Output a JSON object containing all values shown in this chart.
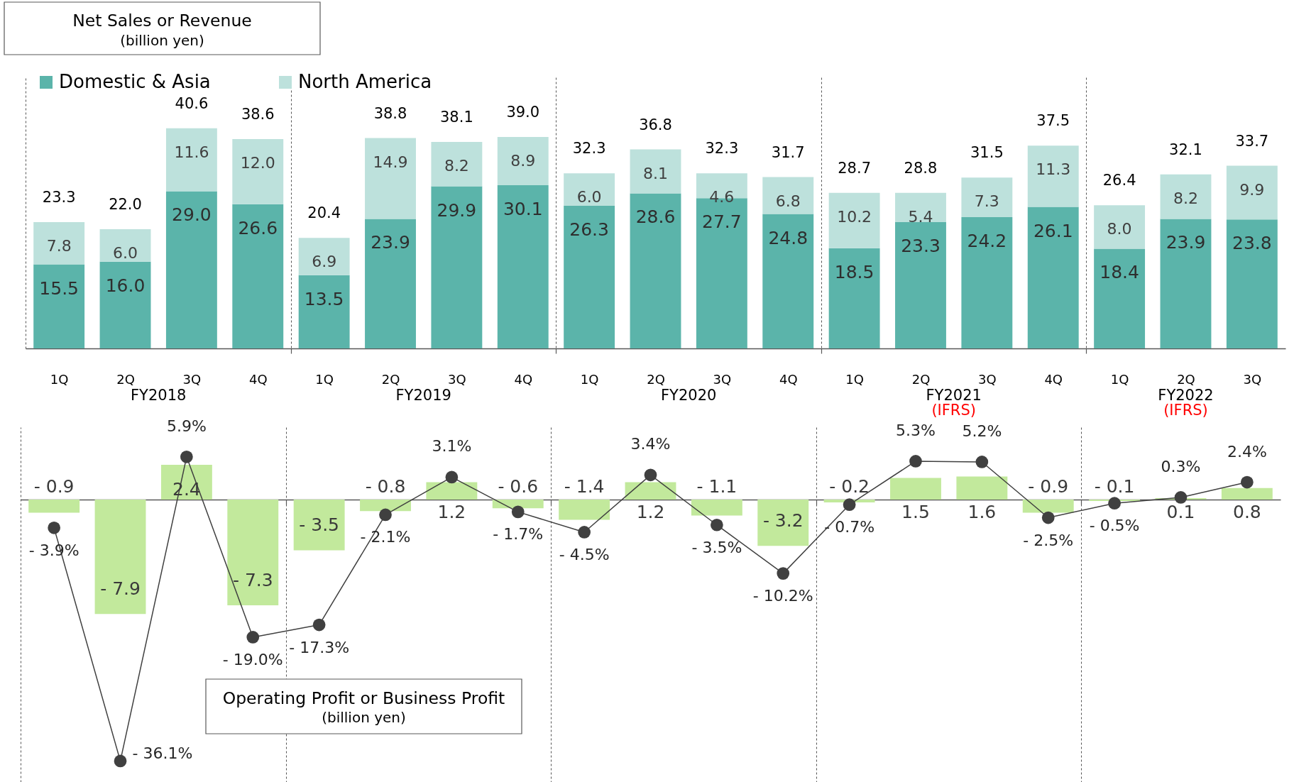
{
  "chart_data": [
    {
      "type": "bar",
      "title": "Net Sales or Revenue",
      "subtitle": "(billion yen)",
      "categories": [
        "1Q",
        "2Q",
        "3Q",
        "4Q",
        "1Q",
        "2Q",
        "3Q",
        "4Q",
        "1Q",
        "2Q",
        "3Q",
        "4Q",
        "1Q",
        "2Q",
        "3Q",
        "4Q",
        "1Q",
        "2Q",
        "3Q"
      ],
      "stacked": true,
      "series": [
        {
          "name": "Domestic & Asia",
          "color": "#5bb4aa",
          "values": [
            15.5,
            16.0,
            29.0,
            26.6,
            13.5,
            23.9,
            29.9,
            30.1,
            26.3,
            28.6,
            27.7,
            24.8,
            18.5,
            23.3,
            24.2,
            26.1,
            18.4,
            23.9,
            23.8
          ],
          "value_labels": [
            "15.5",
            "16.0",
            "29.0",
            "26.6",
            "13.5",
            "23.9",
            "29.9",
            "30.1",
            "26.3",
            "28.6",
            "27.7",
            "24.8",
            "18.5",
            "23.3",
            "24.2",
            "26.1",
            "18.4",
            "23.9",
            "23.8"
          ]
        },
        {
          "name": "North America",
          "color": "#bde1dc",
          "values": [
            7.8,
            6.0,
            11.6,
            12.0,
            6.9,
            14.9,
            8.2,
            8.9,
            6.0,
            8.1,
            4.6,
            6.8,
            10.2,
            5.4,
            7.3,
            11.3,
            8.0,
            8.2,
            9.9
          ],
          "value_labels": [
            "7.8",
            "6.0",
            "11.6",
            "12.0",
            "6.9",
            "14.9",
            "8.2",
            "8.9",
            "6.0",
            "8.1",
            "4.6",
            "6.8",
            "10.2",
            "5.4",
            "7.3",
            "11.3",
            "8.0",
            "8.2",
            "9.9"
          ]
        }
      ],
      "totals": [
        "23.3",
        "22.0",
        "40.6",
        "38.6",
        "20.4",
        "38.8",
        "38.1",
        "39.0",
        "32.3",
        "36.8",
        "32.3",
        "31.7",
        "28.7",
        "28.8",
        "31.5",
        "37.5",
        "26.4",
        "32.1",
        "33.7"
      ],
      "ylim": [
        0,
        50
      ],
      "tick_labels": "x",
      "legend": "top left",
      "annotations": [
        "FY2018",
        "FY2019",
        "FY2020",
        "FY2021\n(IFRS)",
        "FY2022\n(IFRS)"
      ]
    },
    {
      "type": "bar",
      "title": "Operating Profit or Business Profit",
      "subtitle": "(billion yen)",
      "categories": [
        null,
        null,
        null,
        null,
        null,
        null,
        null,
        null,
        null,
        null,
        null,
        null,
        null,
        null,
        null,
        null,
        null,
        null,
        null
      ],
      "series": [
        {
          "color": "#c2e99c",
          "values": [
            -0.9,
            -7.9,
            2.4,
            -7.3,
            -3.5,
            -0.8,
            1.2,
            -0.6,
            -1.4,
            1.2,
            -1.1,
            -3.2,
            -0.2,
            1.5,
            1.6,
            -0.9,
            -0.1,
            0.1,
            0.8
          ],
          "value_labels": [
            "- 0.9",
            "- 7.9",
            "2.4",
            "- 7.3",
            "- 3.5",
            "- 0.8",
            "1.2",
            "- 0.6",
            "- 1.4",
            "1.2",
            "- 1.1",
            "- 3.2",
            "- 0.2",
            "1.5",
            "1.6",
            "- 0.9",
            "- 0.1",
            "0.1",
            "0.8"
          ]
        },
        {
          "type": "line",
          "axis": "y2",
          "color": "#404040",
          "values": [
            -3.9,
            -36.1,
            5.9,
            -19.0,
            -17.3,
            -2.1,
            3.1,
            -1.7,
            -4.5,
            3.4,
            -3.5,
            -10.2,
            -0.7,
            5.3,
            5.2,
            -2.5,
            -0.5,
            0.3,
            2.4
          ],
          "value_labels": [
            "- 3.9%",
            "- 36.1%",
            "5.9%",
            "- 19.0%",
            "- 17.3%",
            "- 2.1%",
            "3.1%",
            "- 1.7%",
            "- 4.5%",
            "3.4%",
            "- 3.5%",
            "- 10.2%",
            "- 0.7%",
            "5.3%",
            "5.2%",
            "- 2.5%",
            "- 0.5%",
            "0.3%",
            "2.4%"
          ]
        }
      ],
      "ylim": [
        -19.5,
        5
      ],
      "y2lim": [
        -39,
        10
      ],
      "tick_labels": false,
      "marker": "circle"
    }
  ]
}
